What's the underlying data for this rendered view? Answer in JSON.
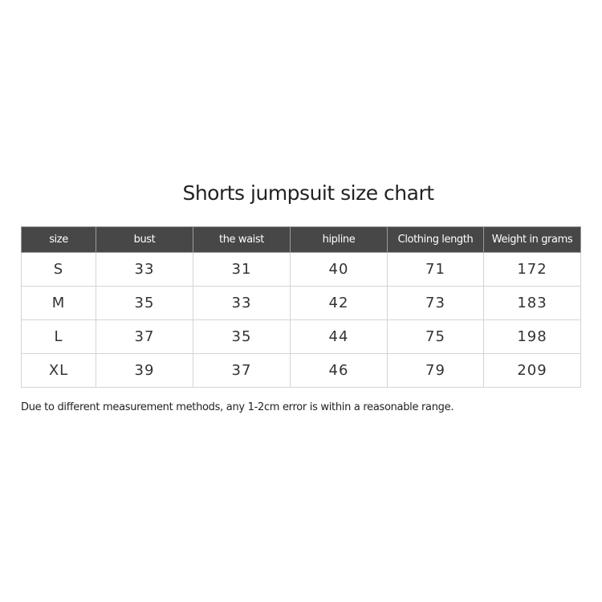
{
  "title": "Shorts jumpsuit size chart",
  "chart_data": {
    "type": "table",
    "columns": [
      "size",
      "bust",
      "the waist",
      "hipline",
      "Clothing length",
      "Weight in grams"
    ],
    "rows": [
      [
        "S",
        "33",
        "31",
        "40",
        "71",
        "172"
      ],
      [
        "M",
        "35",
        "33",
        "42",
        "73",
        "183"
      ],
      [
        "L",
        "37",
        "35",
        "44",
        "75",
        "198"
      ],
      [
        "XL",
        "39",
        "37",
        "46",
        "79",
        "209"
      ]
    ]
  },
  "note": "Due to different measurement methods, any 1-2cm error is within a reasonable range.",
  "colors": {
    "header_bg": "#474747",
    "header_text": "#ffffff"
  }
}
